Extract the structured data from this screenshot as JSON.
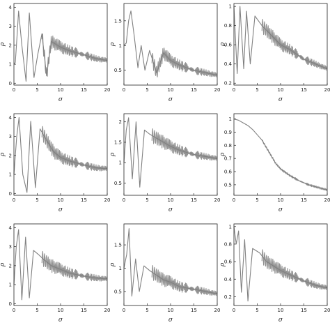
{
  "chart_data": [
    {
      "type": "line",
      "xlabel": "σ",
      "ylabel": "ρ",
      "xlim": [
        0,
        20
      ],
      "ylim": [
        -0.1,
        4.2
      ],
      "x_ticks": [
        0,
        5,
        10,
        15,
        20
      ],
      "y_ticks": [
        0,
        1,
        2,
        3,
        4
      ],
      "series": [
        {
          "x": [
            0,
            0.3,
            0.7,
            1.0,
            1.7,
            2.6,
            3.3,
            4.3,
            5.1,
            6.0,
            7.0,
            8.0,
            10.0,
            12.0,
            15.0,
            17.5,
            20.0
          ],
          "y": [
            1.0,
            1.1,
            2.6,
            3.8,
            2.0,
            0.1,
            3.7,
            0.3,
            1.5,
            2.6,
            0.4,
            2.2,
            1.9,
            1.7,
            1.5,
            1.3,
            1.2
          ]
        }
      ]
    },
    {
      "type": "line",
      "xlabel": "σ",
      "ylabel": "ρ",
      "xlim": [
        0,
        20
      ],
      "ylim": [
        0.2,
        1.85
      ],
      "x_ticks": [
        0,
        5,
        10,
        15,
        20
      ],
      "y_ticks": [
        0.5,
        1.0,
        1.5
      ],
      "series": [
        {
          "x": [
            0,
            0.5,
            1.0,
            1.5,
            2.2,
            3.0,
            3.7,
            4.5,
            5.5,
            7.0,
            8.5,
            10.0,
            12.0,
            15.0,
            17.5,
            20.0
          ],
          "y": [
            1.0,
            1.05,
            1.5,
            1.7,
            1.2,
            0.55,
            1.0,
            0.5,
            0.9,
            0.45,
            0.85,
            0.7,
            0.6,
            0.5,
            0.45,
            0.4
          ]
        }
      ]
    },
    {
      "type": "line",
      "xlabel": "σ",
      "ylabel": "ρ",
      "xlim": [
        0,
        20
      ],
      "ylim": [
        0.18,
        1.03
      ],
      "x_ticks": [
        0,
        5,
        10,
        15,
        20
      ],
      "y_ticks": [
        0.2,
        0.4,
        0.6,
        0.8,
        1.0
      ],
      "series": [
        {
          "x": [
            0,
            0.7,
            1.3,
            2.1,
            2.7,
            3.5,
            4.5,
            6.0,
            8.0,
            10.0,
            12.0,
            15.0,
            17.5,
            20.0
          ],
          "y": [
            1.0,
            0.3,
            1.0,
            0.35,
            0.95,
            0.4,
            0.9,
            0.8,
            0.7,
            0.6,
            0.55,
            0.45,
            0.4,
            0.35
          ]
        }
      ]
    },
    {
      "type": "line",
      "xlabel": "σ",
      "ylabel": "ρ",
      "xlim": [
        0,
        20
      ],
      "ylim": [
        -0.1,
        4.2
      ],
      "x_ticks": [
        0,
        5,
        10,
        15,
        20
      ],
      "y_ticks": [
        0,
        1,
        2,
        3,
        4
      ],
      "series": [
        {
          "x": [
            0,
            0.6,
            1.1,
            1.9,
            2.8,
            3.6,
            4.6,
            5.6,
            7.0,
            8.5,
            10.0,
            12.0,
            15.0,
            17.5,
            20.0
          ],
          "y": [
            1.0,
            3.0,
            4.0,
            1.0,
            0.05,
            3.8,
            0.3,
            3.4,
            2.8,
            2.2,
            1.9,
            1.7,
            1.5,
            1.35,
            1.3
          ]
        }
      ]
    },
    {
      "type": "line",
      "xlabel": "σ",
      "ylabel": "ρ",
      "xlim": [
        0,
        20
      ],
      "ylim": [
        0.2,
        2.2
      ],
      "x_ticks": [
        0,
        5,
        10,
        15,
        20
      ],
      "y_ticks": [
        0.5,
        1.0,
        1.5,
        2.0
      ],
      "series": [
        {
          "x": [
            0,
            0.5,
            1.0,
            1.8,
            2.6,
            3.4,
            4.4,
            5.5,
            7.0,
            8.5,
            10.0,
            12.0,
            15.0,
            17.5,
            20.0
          ],
          "y": [
            1.0,
            1.8,
            2.1,
            0.6,
            2.0,
            0.4,
            1.8,
            1.7,
            1.6,
            1.5,
            1.4,
            1.3,
            1.2,
            1.15,
            1.1
          ]
        }
      ]
    },
    {
      "type": "line",
      "xlabel": "σ",
      "ylabel": "ρ",
      "xlim": [
        0,
        20
      ],
      "ylim": [
        0.42,
        1.04
      ],
      "x_ticks": [
        0,
        5,
        10,
        15,
        20
      ],
      "y_ticks": [
        0.5,
        0.6,
        0.7,
        0.8,
        0.9,
        1.0
      ],
      "series": [
        {
          "x": [
            0,
            1.0,
            2.0,
            3.0,
            4.0,
            5.0,
            6.0,
            7.0,
            8.0,
            9.0,
            10.0,
            12.0,
            14.0,
            16.0,
            18.0,
            20.0
          ],
          "y": [
            1.0,
            0.99,
            0.97,
            0.95,
            0.92,
            0.88,
            0.84,
            0.78,
            0.72,
            0.66,
            0.62,
            0.57,
            0.53,
            0.5,
            0.48,
            0.46
          ]
        }
      ]
    },
    {
      "type": "line",
      "xlabel": "σ",
      "ylabel": "ρ",
      "xlim": [
        0,
        20
      ],
      "ylim": [
        -0.1,
        4.2
      ],
      "x_ticks": [
        0,
        5,
        10,
        15,
        20
      ],
      "y_ticks": [
        0,
        1,
        2,
        3,
        4
      ],
      "series": [
        {
          "x": [
            0,
            0.5,
            1.0,
            1.7,
            2.5,
            3.3,
            4.2,
            5.2,
            6.5,
            8.0,
            10.0,
            12.0,
            15.0,
            17.5,
            20.0
          ],
          "y": [
            1.0,
            3.0,
            3.9,
            0.2,
            3.5,
            0.3,
            2.8,
            2.6,
            2.3,
            2.0,
            1.8,
            1.6,
            1.45,
            1.35,
            1.3
          ]
        }
      ]
    },
    {
      "type": "line",
      "xlabel": "σ",
      "ylabel": "ρ",
      "xlim": [
        0,
        20
      ],
      "ylim": [
        0.2,
        1.95
      ],
      "x_ticks": [
        0,
        5,
        10,
        15,
        20
      ],
      "y_ticks": [
        0.5,
        1.0,
        1.5
      ],
      "series": [
        {
          "x": [
            0,
            0.6,
            1.1,
            1.7,
            2.5,
            3.3,
            4.3,
            5.5,
            7.0,
            8.5,
            10.0,
            12.0,
            15.0,
            17.5,
            20.0
          ],
          "y": [
            1.0,
            1.3,
            1.85,
            0.4,
            1.2,
            0.5,
            1.05,
            0.95,
            0.85,
            0.75,
            0.7,
            0.6,
            0.55,
            0.5,
            0.45
          ]
        }
      ]
    },
    {
      "type": "line",
      "xlabel": "σ",
      "ylabel": "ρ",
      "xlim": [
        0,
        20
      ],
      "ylim": [
        0.1,
        1.03
      ],
      "x_ticks": [
        0,
        5,
        10,
        15,
        20
      ],
      "y_ticks": [
        0.2,
        0.4,
        0.6,
        0.8,
        1.0
      ],
      "series": [
        {
          "x": [
            0,
            0.5,
            1.0,
            1.6,
            2.3,
            3.0,
            4.0,
            5.5,
            7.0,
            8.5,
            10.0,
            12.0,
            15.0,
            17.5,
            20.0
          ],
          "y": [
            1.0,
            0.8,
            0.95,
            0.25,
            0.85,
            0.15,
            0.75,
            0.7,
            0.6,
            0.55,
            0.5,
            0.45,
            0.38,
            0.33,
            0.3
          ]
        }
      ]
    }
  ]
}
